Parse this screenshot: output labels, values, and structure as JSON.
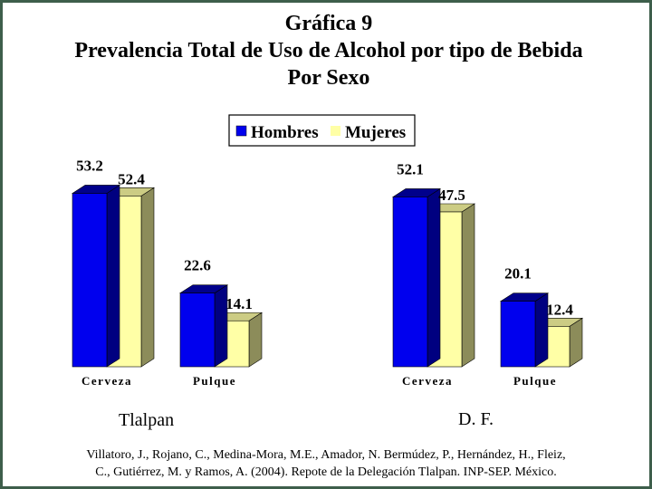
{
  "title_lines": [
    "Gráfica 9",
    "Prevalencia Total de Uso de Alcohol por tipo de Bebida",
    "Por Sexo"
  ],
  "group_labels": [
    "Tlalpan",
    "D. F."
  ],
  "citation_lines": [
    "Villatoro, J., Rojano, C., Medina-Mora, M.E., Amador, N. Bermúdez, P., Hernández, H., Fleiz,",
    "C., Gutiérrez, M. y Ramos, A. (2004). Repote de la Delegación Tlalpan. INP-SEP. México."
  ],
  "colors": {
    "hombres_front": "#0000ee",
    "hombres_top": "#00008b",
    "hombres_side": "#000080",
    "mujeres_front": "#ffffa6",
    "mujeres_top": "#cccc84",
    "mujeres_side": "#8c8c5a",
    "frame": "#3d5e4b"
  },
  "chart_data": [
    {
      "type": "bar",
      "group": "Tlalpan",
      "categories": [
        "Cerveza",
        "Pulque"
      ],
      "series": [
        {
          "name": "Hombres",
          "values": [
            53.2,
            22.6
          ]
        },
        {
          "name": "Mujeres",
          "values": [
            52.4,
            14.1
          ]
        }
      ],
      "legend_position": "top-center",
      "grid": false
    },
    {
      "type": "bar",
      "group": "D. F.",
      "categories": [
        "Cerveza",
        "Pulque"
      ],
      "series": [
        {
          "name": "Hombres",
          "values": [
            52.1,
            20.1
          ]
        },
        {
          "name": "Mujeres",
          "values": [
            47.5,
            12.4
          ]
        }
      ],
      "legend_position": "top-center",
      "grid": false
    }
  ]
}
